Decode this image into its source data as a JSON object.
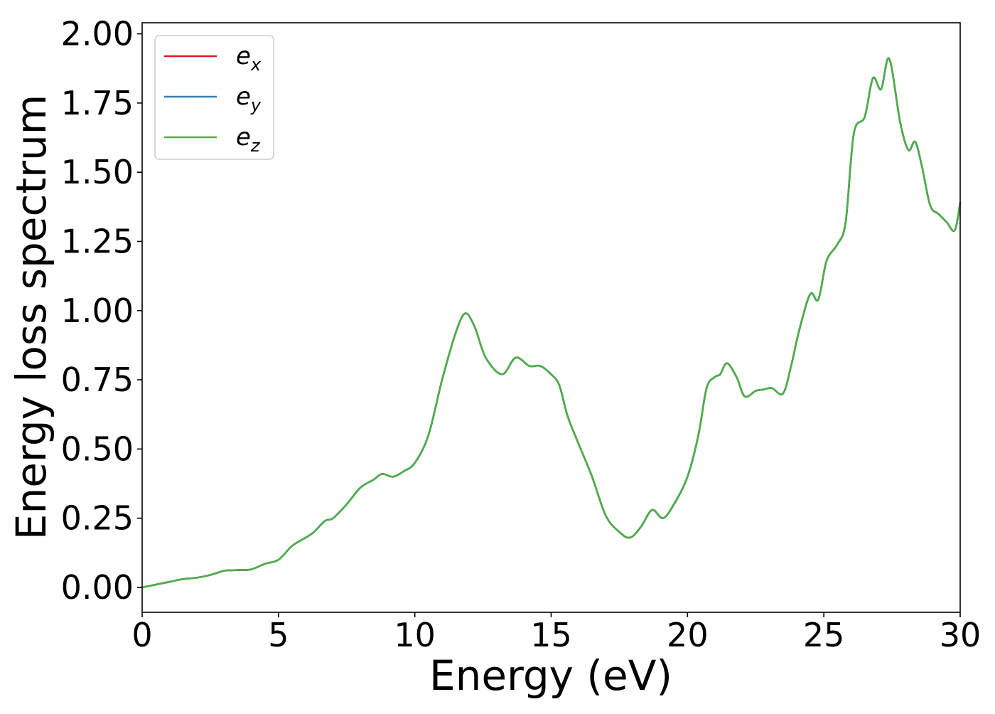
{
  "chart_data": {
    "type": "line",
    "title": "",
    "xlabel": "Energy (eV)",
    "ylabel": "Energy loss spectrum",
    "xlim": [
      0,
      30
    ],
    "ylim": [
      -0.09,
      2.04
    ],
    "xticks": [
      0,
      5,
      10,
      15,
      20,
      25,
      30
    ],
    "xtick_labels": [
      "0",
      "5",
      "10",
      "15",
      "20",
      "25",
      "30"
    ],
    "yticks": [
      0,
      0.25,
      0.5,
      0.75,
      1.0,
      1.25,
      1.5,
      1.75,
      2.0
    ],
    "ytick_labels": [
      "0.00",
      "0.25",
      "0.50",
      "0.75",
      "1.00",
      "1.25",
      "1.50",
      "1.75",
      "2.00"
    ],
    "grid": false,
    "legend_position": "top-left",
    "x": [
      0,
      0.5,
      1,
      1.5,
      2,
      2.5,
      3,
      3.3,
      3.6,
      4,
      4.5,
      5,
      5.5,
      6,
      6.3,
      6.7,
      7,
      7.5,
      8,
      8.5,
      8.8,
      9.2,
      9.6,
      10,
      10.5,
      11,
      11.5,
      11.85,
      12.2,
      12.6,
      13.2,
      13.7,
      14.2,
      14.6,
      15,
      15.3,
      15.6,
      16,
      16.5,
      17,
      17.5,
      17.9,
      18.3,
      18.7,
      19.1,
      19.5,
      20,
      20.4,
      20.7,
      21,
      21.2,
      21.45,
      21.8,
      22.1,
      22.5,
      22.8,
      23.1,
      23.5,
      23.8,
      24.1,
      24.5,
      24.8,
      25.1,
      25.5,
      25.8,
      26.1,
      26.5,
      26.8,
      27.1,
      27.4,
      27.8,
      28.1,
      28.35,
      28.6,
      28.9,
      29.2,
      29.5,
      29.8,
      30
    ],
    "series": [
      {
        "name": "ex",
        "legend_base": "e",
        "legend_sub": "x",
        "color": "#e41a1c",
        "values": [
          0.0,
          0.01,
          0.02,
          0.03,
          0.035,
          0.045,
          0.06,
          0.062,
          0.063,
          0.065,
          0.085,
          0.1,
          0.15,
          0.18,
          0.2,
          0.24,
          0.25,
          0.3,
          0.36,
          0.39,
          0.41,
          0.4,
          0.42,
          0.45,
          0.55,
          0.75,
          0.92,
          0.99,
          0.94,
          0.83,
          0.77,
          0.83,
          0.8,
          0.8,
          0.77,
          0.73,
          0.62,
          0.52,
          0.4,
          0.26,
          0.2,
          0.18,
          0.22,
          0.28,
          0.25,
          0.3,
          0.4,
          0.55,
          0.72,
          0.76,
          0.77,
          0.81,
          0.76,
          0.69,
          0.71,
          0.715,
          0.72,
          0.7,
          0.8,
          0.93,
          1.06,
          1.04,
          1.18,
          1.24,
          1.32,
          1.64,
          1.7,
          1.84,
          1.8,
          1.91,
          1.68,
          1.58,
          1.61,
          1.52,
          1.38,
          1.35,
          1.32,
          1.29,
          1.39
        ]
      },
      {
        "name": "ey",
        "legend_base": "e",
        "legend_sub": "y",
        "color": "#377eb8",
        "values": [
          0.0,
          0.01,
          0.02,
          0.03,
          0.035,
          0.045,
          0.06,
          0.062,
          0.063,
          0.065,
          0.085,
          0.1,
          0.15,
          0.18,
          0.2,
          0.24,
          0.25,
          0.3,
          0.36,
          0.39,
          0.41,
          0.4,
          0.42,
          0.45,
          0.55,
          0.75,
          0.92,
          0.99,
          0.94,
          0.83,
          0.77,
          0.83,
          0.8,
          0.8,
          0.77,
          0.73,
          0.62,
          0.52,
          0.4,
          0.26,
          0.2,
          0.18,
          0.22,
          0.28,
          0.25,
          0.3,
          0.4,
          0.55,
          0.72,
          0.76,
          0.77,
          0.81,
          0.76,
          0.69,
          0.71,
          0.715,
          0.72,
          0.7,
          0.8,
          0.93,
          1.06,
          1.04,
          1.18,
          1.24,
          1.32,
          1.64,
          1.7,
          1.84,
          1.8,
          1.91,
          1.68,
          1.58,
          1.61,
          1.52,
          1.38,
          1.35,
          1.32,
          1.29,
          1.39
        ]
      },
      {
        "name": "ez",
        "legend_base": "e",
        "legend_sub": "z",
        "color": "#4daf4a",
        "values": [
          0.0,
          0.01,
          0.02,
          0.03,
          0.035,
          0.045,
          0.06,
          0.062,
          0.063,
          0.065,
          0.085,
          0.1,
          0.15,
          0.18,
          0.2,
          0.24,
          0.25,
          0.3,
          0.36,
          0.39,
          0.41,
          0.4,
          0.42,
          0.45,
          0.55,
          0.75,
          0.92,
          0.99,
          0.94,
          0.83,
          0.77,
          0.83,
          0.8,
          0.8,
          0.77,
          0.73,
          0.62,
          0.52,
          0.4,
          0.26,
          0.2,
          0.18,
          0.22,
          0.28,
          0.25,
          0.3,
          0.4,
          0.55,
          0.72,
          0.76,
          0.77,
          0.81,
          0.76,
          0.69,
          0.71,
          0.715,
          0.72,
          0.7,
          0.8,
          0.93,
          1.06,
          1.04,
          1.18,
          1.24,
          1.32,
          1.64,
          1.7,
          1.84,
          1.8,
          1.91,
          1.68,
          1.58,
          1.61,
          1.52,
          1.38,
          1.35,
          1.32,
          1.29,
          1.39
        ]
      }
    ]
  }
}
